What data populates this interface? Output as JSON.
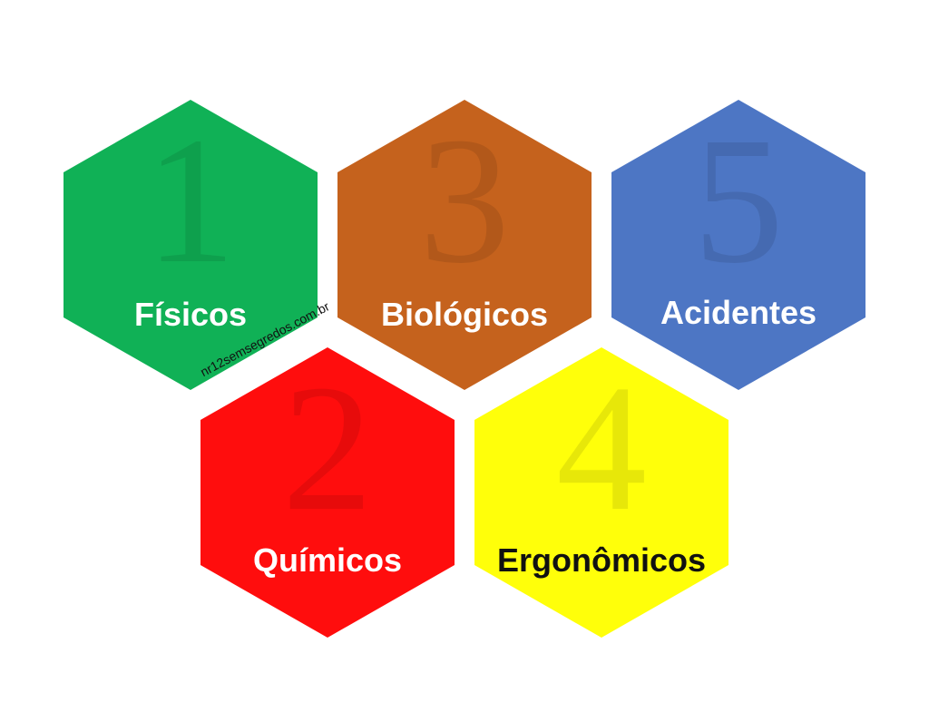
{
  "hexagons": [
    {
      "number": "1",
      "label": "Físicos",
      "color": "#10b156",
      "text_color": "#ffffff"
    },
    {
      "number": "3",
      "label": "Biológicos",
      "color": "#c5621d",
      "text_color": "#ffffff"
    },
    {
      "number": "5",
      "label": "Acidentes",
      "color": "#4d76c4",
      "text_color": "#ffffff"
    },
    {
      "number": "2",
      "label": "Químicos",
      "color": "#ff0d0d",
      "text_color": "#ffffff"
    },
    {
      "number": "4",
      "label": "Ergonômicos",
      "color": "#ffff0a",
      "text_color": "#111111"
    }
  ],
  "watermark": "nr12semsegredos.com.br"
}
